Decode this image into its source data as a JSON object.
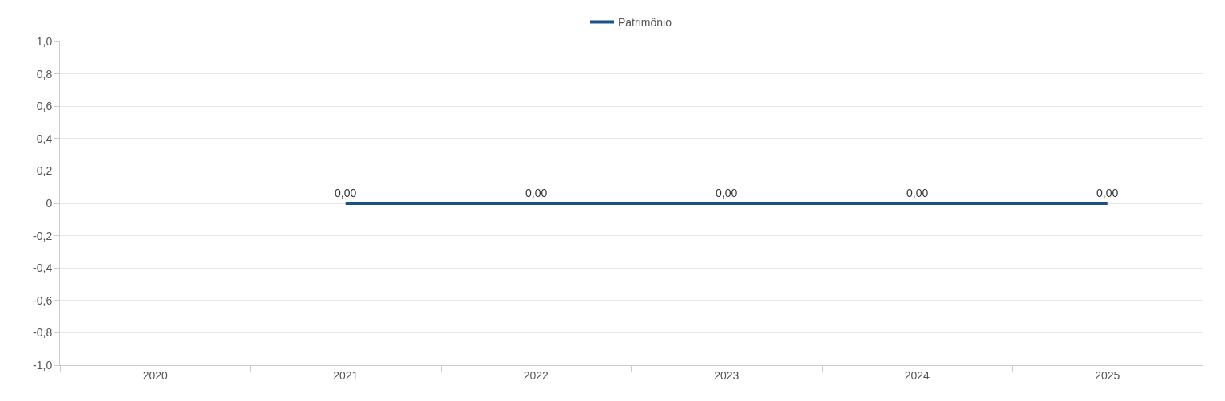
{
  "chart_data": {
    "type": "line",
    "categories": [
      "2020",
      "2021",
      "2022",
      "2023",
      "2024",
      "2025"
    ],
    "series": [
      {
        "name": "Patrimônio",
        "color": "#1a5186",
        "values": [
          null,
          0,
          0,
          0,
          0,
          0
        ],
        "value_labels": [
          null,
          "0,00",
          "0,00",
          "0,00",
          "0,00",
          "0,00"
        ]
      }
    ],
    "ylim": [
      -1.0,
      1.0
    ],
    "yticks": [
      {
        "value": -1.0,
        "label": "-1,0"
      },
      {
        "value": -0.8,
        "label": "-0,8"
      },
      {
        "value": -0.6,
        "label": "-0,6"
      },
      {
        "value": -0.4,
        "label": "-0,4"
      },
      {
        "value": -0.2,
        "label": "-0,2"
      },
      0,
      {
        "value": 0.2,
        "label": "0,2"
      },
      {
        "value": 0.4,
        "label": "0,4"
      },
      {
        "value": 0.6,
        "label": "0,6"
      },
      {
        "value": 0.8,
        "label": "0,8"
      },
      {
        "value": 1.0,
        "label": "1,0"
      }
    ],
    "grid": "y",
    "legend": "top",
    "marker": "none",
    "line_style": "solid"
  }
}
